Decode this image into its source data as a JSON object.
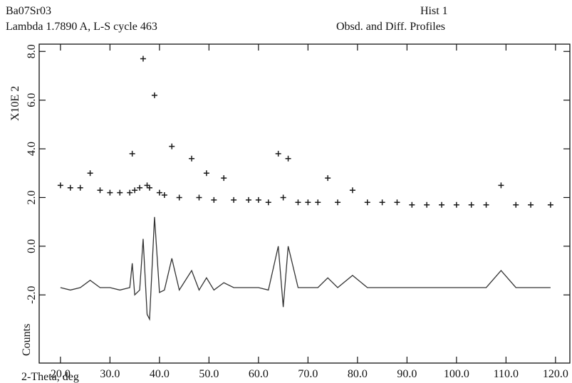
{
  "chart_data": {
    "type": "line",
    "title": "Obsd. and Diff. Profiles",
    "phase": "Ba07Sr03",
    "histogram": "Hist  1",
    "subtitle": "Lambda 1.7890 A, L-S cycle  463",
    "ylabel": "Counts",
    "yscale_label": "X10E  2",
    "xlabel": "2-Theta, deg",
    "xlim": [
      15.7,
      122.9
    ],
    "ylim": [
      -4.8,
      8.3
    ],
    "xticks": [
      {
        "value": 20,
        "label": "20.0"
      },
      {
        "value": 30,
        "label": "30.0"
      },
      {
        "value": 40,
        "label": "40.0"
      },
      {
        "value": 50,
        "label": "50.0"
      },
      {
        "value": 60,
        "label": "60.0"
      },
      {
        "value": 70,
        "label": "70.0"
      },
      {
        "value": 80,
        "label": "80.0"
      },
      {
        "value": 90,
        "label": "90.0"
      },
      {
        "value": 100,
        "label": "100.0"
      },
      {
        "value": 110,
        "label": "110.0"
      },
      {
        "value": 120,
        "label": "120.0"
      }
    ],
    "yticks": [
      {
        "value": -2,
        "label": "-2.0"
      },
      {
        "value": 0,
        "label": "0.0"
      },
      {
        "value": 2,
        "label": "2.0"
      },
      {
        "value": 4,
        "label": "4.0"
      },
      {
        "value": 6,
        "label": "6.0"
      },
      {
        "value": 8,
        "label": "8.0"
      }
    ],
    "x": [
      20,
      22,
      24,
      26,
      28,
      30,
      32,
      34,
      34.5,
      35,
      36,
      36.7,
      37.5,
      38,
      39,
      40,
      41,
      42.5,
      44,
      46.5,
      48,
      49.5,
      51,
      53,
      55,
      58,
      60,
      62,
      64,
      65,
      66,
      68,
      70,
      72,
      74,
      76,
      79,
      82,
      85,
      88,
      91,
      94,
      97,
      100,
      103,
      106,
      109,
      112,
      115,
      119
    ],
    "series": [
      {
        "style": "markers",
        "color": "#1a1a1a",
        "values": [
          2.5,
          2.4,
          2.4,
          3.0,
          2.3,
          2.2,
          2.2,
          2.2,
          3.8,
          2.3,
          2.4,
          7.7,
          2.5,
          2.4,
          6.2,
          2.2,
          2.1,
          4.1,
          2.0,
          3.6,
          2.0,
          3.0,
          1.9,
          2.8,
          1.9,
          1.9,
          1.9,
          1.8,
          3.8,
          2.0,
          3.6,
          1.8,
          1.8,
          1.8,
          2.8,
          1.8,
          2.3,
          1.8,
          1.8,
          1.8,
          1.7,
          1.7,
          1.7,
          1.7,
          1.7,
          1.7,
          2.5,
          1.7,
          1.7,
          1.7
        ]
      },
      {
        "style": "line",
        "color": "#333333",
        "values": [
          -1.7,
          -1.8,
          -1.7,
          -1.4,
          -1.7,
          -1.7,
          -1.8,
          -1.7,
          -0.7,
          -2.0,
          -1.8,
          0.3,
          -2.8,
          -3.0,
          1.2,
          -1.9,
          -1.8,
          -0.5,
          -1.8,
          -1.0,
          -1.8,
          -1.3,
          -1.8,
          -1.5,
          -1.7,
          -1.7,
          -1.7,
          -1.8,
          0.0,
          -2.5,
          0.0,
          -1.7,
          -1.7,
          -1.7,
          -1.3,
          -1.7,
          -1.2,
          -1.7,
          -1.7,
          -1.7,
          -1.7,
          -1.7,
          -1.7,
          -1.7,
          -1.7,
          -1.7,
          -1.0,
          -1.7,
          -1.7,
          -1.7
        ]
      }
    ]
  }
}
